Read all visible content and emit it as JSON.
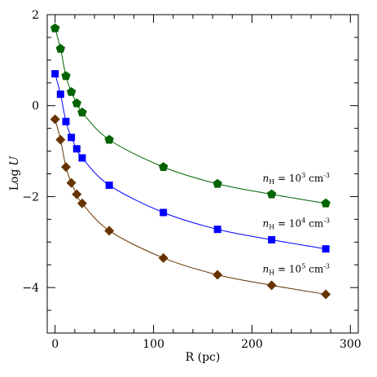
{
  "chart_data": {
    "type": "line",
    "xlabel": "R (pc)",
    "ylabel_main": "Log",
    "ylabel_var": "U",
    "xlim": [
      -8,
      308
    ],
    "ylim": [
      -5,
      2
    ],
    "x_ticks": [
      0,
      100,
      200,
      300
    ],
    "y_ticks": [
      -4,
      -2,
      0,
      2
    ],
    "x_minor_step": 20,
    "y_minor_step": 0.5,
    "grid": false,
    "x": [
      0,
      5.5,
      11,
      16.5,
      22,
      27.5,
      55,
      110,
      165,
      220,
      275
    ],
    "series": [
      {
        "name": "n_H = 10^3 cm^-3",
        "label_var": "n",
        "label_sub": "H",
        "label_eq": " = 10",
        "label_exp": "3",
        "label_unit": " cm",
        "label_unit_exp": "-3",
        "marker": "pentagon",
        "color": "#006400",
        "values": [
          1.7,
          1.25,
          0.65,
          0.3,
          0.05,
          -0.15,
          -0.75,
          -1.35,
          -1.72,
          -1.95,
          -2.15
        ]
      },
      {
        "name": "n_H = 10^4 cm^-3",
        "label_var": "n",
        "label_sub": "H",
        "label_eq": " = 10",
        "label_exp": "4",
        "label_unit": " cm",
        "label_unit_exp": "-3",
        "marker": "square",
        "color": "#0000ff",
        "values": [
          0.7,
          0.25,
          -0.35,
          -0.7,
          -0.95,
          -1.15,
          -1.75,
          -2.35,
          -2.72,
          -2.95,
          -3.15
        ]
      },
      {
        "name": "n_H = 10^5 cm^-3",
        "label_var": "n",
        "label_sub": "H",
        "label_eq": " = 10",
        "label_exp": "5",
        "label_unit": " cm",
        "label_unit_exp": "-3",
        "marker": "diamond",
        "color": "#663300",
        "values": [
          -0.3,
          -0.75,
          -1.35,
          -1.7,
          -1.95,
          -2.15,
          -2.75,
          -3.35,
          -3.72,
          -3.95,
          -4.15
        ]
      }
    ]
  }
}
